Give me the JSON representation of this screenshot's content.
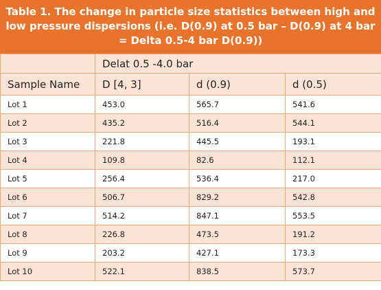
{
  "title": "Table 1. The change in particle size statistics between high and low pressure dispersions (i.e. D(0.9) at 0.5 bar – D(0.9) at 4 bar = Delta 0.5-4 bar D(0.9))",
  "table": {
    "group_header": "Delat 0.5 -4.0 bar",
    "columns": [
      "Sample Name",
      "D [4, 3]",
      "d (0.9)",
      "d (0.5)"
    ],
    "rows": [
      [
        "Lot 1",
        "453.0",
        "565.7",
        "541.6"
      ],
      [
        "Lot 2",
        "435.2",
        "516.4",
        "544.1"
      ],
      [
        "Lot 3",
        "221.8",
        "445.5",
        "193.1"
      ],
      [
        "Lot 4",
        "109.8",
        "82.6",
        "112.1"
      ],
      [
        "Lot 5",
        "256.4",
        "536.4",
        "217.0"
      ],
      [
        "Lot 6",
        "506.7",
        "829.2",
        "542.8"
      ],
      [
        "Lot 7",
        "514.2",
        "847.1",
        "553.5"
      ],
      [
        "Lot 8",
        "226.8",
        "473.5",
        "191.2"
      ],
      [
        "Lot 9",
        "203.2",
        "427.1",
        "173.3"
      ],
      [
        "Lot 10",
        "522.1",
        "838.5",
        "573.7"
      ]
    ]
  }
}
